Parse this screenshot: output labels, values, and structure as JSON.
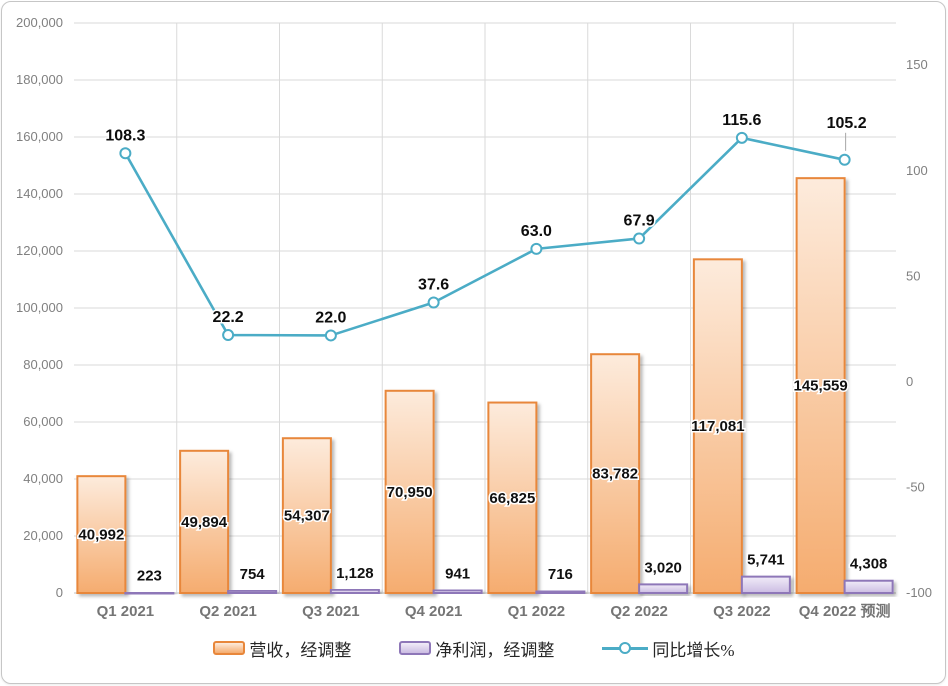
{
  "chart_data": {
    "type": "combo",
    "title": "",
    "categories": [
      "Q1 2021",
      "Q2 2021",
      "Q3 2021",
      "Q4 2021",
      "Q1 2022",
      "Q2 2022",
      "Q3 2022",
      "Q4 2022 预测"
    ],
    "series": [
      {
        "name": "营收，经调整",
        "type": "bar",
        "axis": "left",
        "values": [
          40992,
          49894,
          54307,
          70950,
          66825,
          83782,
          117081,
          145559
        ],
        "labels": [
          "40,992",
          "49,894",
          "54,307",
          "70,950",
          "66,825",
          "83,782",
          "117,081",
          "145,559"
        ],
        "color_top": "#FDEBDC",
        "color_bottom": "#F5AC6F",
        "border_color": "#E8873B"
      },
      {
        "name": "净利润，经调整",
        "type": "bar",
        "axis": "left",
        "values": [
          223,
          754,
          1128,
          941,
          716,
          3020,
          5741,
          4308
        ],
        "labels": [
          "223",
          "754",
          "1,128",
          "941",
          "716",
          "3,020",
          "5,741",
          "4,308"
        ],
        "color_top": "#F1ECF8",
        "color_bottom": "#CBBCE2",
        "border_color": "#8E77B8"
      },
      {
        "name": "同比增长%",
        "type": "line",
        "axis": "right",
        "values": [
          108.3,
          22.2,
          22.0,
          37.6,
          63.0,
          67.9,
          115.6,
          105.2
        ],
        "labels": [
          "108.3",
          "22.2",
          "22.0",
          "37.6",
          "63.0",
          "67.9",
          "115.6",
          "105.2"
        ],
        "line_color": "#4BACC6",
        "marker_fill": "#FFFFFF"
      }
    ],
    "left_axis": {
      "min": 0,
      "max": 200000,
      "step": 20000,
      "tick_labels": [
        "0",
        "20,000",
        "40,000",
        "60,000",
        "80,000",
        "100,000",
        "120,000",
        "140,000",
        "160,000",
        "180,000",
        "200,000"
      ]
    },
    "right_axis": {
      "min": -100,
      "max": 170,
      "ticks": [
        150,
        100,
        50,
        0,
        -50,
        -100
      ],
      "tick_labels": [
        "150",
        "100",
        "50",
        "0",
        "-50",
        "-100"
      ]
    },
    "grid": true,
    "legend_position": "bottom",
    "colors": {
      "gridline": "#DADADA",
      "axis_line": "#C0C0C0",
      "leader_line": "#A6A6A6",
      "tick_text": "#808080"
    }
  }
}
